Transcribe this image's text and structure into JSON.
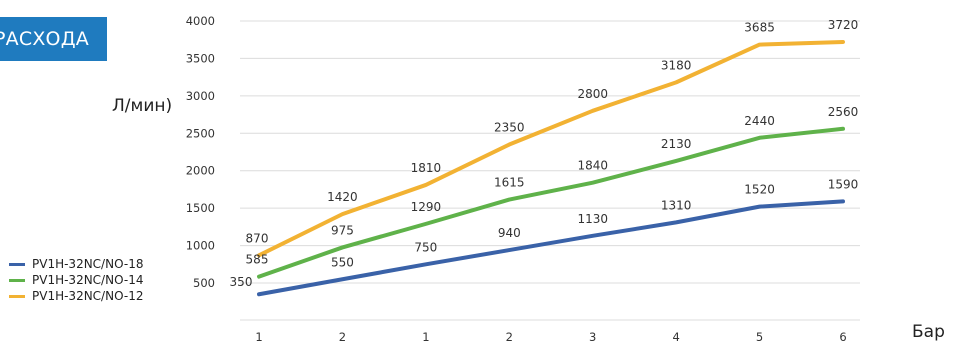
{
  "header": {
    "title": "РАСХОДА",
    "unit": "Л/мин)"
  },
  "chart_data": {
    "type": "line",
    "categories": [
      "1",
      "2",
      "1",
      "2",
      "3",
      "4",
      "5",
      "6"
    ],
    "xlabel": "Бар",
    "y_ticks": [
      500,
      1000,
      1500,
      2000,
      2500,
      3000,
      3500,
      4000
    ],
    "ylim": [
      250,
      4000
    ],
    "grid": true,
    "legend_position": "bottom-left",
    "series": [
      {
        "name": "PV1H-32NC/NO-18",
        "color": "#3a62a8",
        "values": [
          350,
          550,
          750,
          940,
          1130,
          1310,
          1520,
          1590
        ],
        "labels": [
          "350",
          "550",
          "750",
          "940",
          "1130",
          "1310",
          "1520",
          "1590"
        ]
      },
      {
        "name": "PV1H-32NC/NO-14",
        "color": "#5fb24a",
        "values": [
          585,
          975,
          1290,
          1615,
          1840,
          2130,
          2440,
          2560
        ],
        "labels": [
          "585",
          "975",
          "1290",
          "1615",
          "1840",
          "2130",
          "2440",
          "2560"
        ]
      },
      {
        "name": "PV1H-32NC/NO-12",
        "color": "#f2b233",
        "values": [
          870,
          1420,
          1810,
          2350,
          2800,
          3180,
          3685,
          3720
        ],
        "labels": [
          "870",
          "1420",
          "1810",
          "2350",
          "2800",
          "3180",
          "3685",
          "3720"
        ]
      }
    ]
  }
}
